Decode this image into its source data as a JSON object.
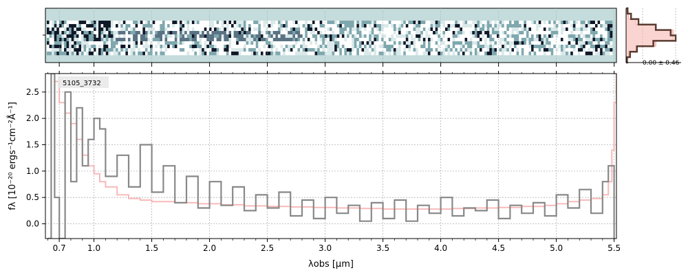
{
  "chart_data": [
    {
      "type": "heatmap",
      "panel": "2d-spectrum",
      "colors": {
        "background": "#c5dcdc",
        "dark": "#101828",
        "mid": "#7fa8ae"
      }
    },
    {
      "type": "line",
      "panel": "pixel-histogram",
      "annotation": "0.00 ± 0.46",
      "xlim": [
        -1.5,
        1.5
      ],
      "series": [
        {
          "color": "#5a3a30",
          "bins": [
            -1.5,
            -1.2,
            -0.9,
            -0.6,
            -0.3,
            0,
            0.3,
            0.6,
            0.9,
            1.2,
            1.5
          ],
          "counts": [
            0.02,
            0.08,
            0.22,
            0.55,
            1.0,
            0.9,
            0.6,
            0.25,
            0.1,
            0.03
          ]
        },
        {
          "color": "#f7b8b0",
          "bins": [
            -1.5,
            -1.2,
            -0.9,
            -0.6,
            -0.3,
            0,
            0.3,
            0.6,
            0.9,
            1.2,
            1.5
          ],
          "counts": [
            0.01,
            0.05,
            0.2,
            0.6,
            0.95,
            0.95,
            0.6,
            0.2,
            0.05,
            0.01
          ]
        }
      ]
    },
    {
      "type": "line",
      "panel": "1d-spectrum",
      "label": "5105_3732",
      "xlabel": "λobs [μm]",
      "ylabel": "fλ [10⁻²⁰ ergs⁻¹cm⁻²Å⁻¹]",
      "xlim": [
        0.58,
        5.52
      ],
      "ylim": [
        -0.28,
        2.85
      ],
      "xticks": [
        "0.7",
        "1.0",
        "1.5",
        "2.0",
        "2.5",
        "3.0",
        "3.5",
        "4.0",
        "4.5",
        "5.0",
        "5.5"
      ],
      "yticks": [
        "0.0",
        "0.5",
        "1.0",
        "1.5",
        "2.0",
        "2.5"
      ],
      "grid": true,
      "series": [
        {
          "name": "",
          "color": "#888888",
          "x": [
            0.6,
            0.63,
            0.66,
            0.7,
            0.75,
            0.8,
            0.85,
            0.9,
            0.95,
            1.0,
            1.05,
            1.1,
            1.2,
            1.3,
            1.4,
            1.5,
            1.6,
            1.7,
            1.8,
            1.9,
            2.0,
            2.1,
            2.2,
            2.3,
            2.4,
            2.5,
            2.6,
            2.7,
            2.8,
            2.9,
            3.0,
            3.1,
            3.2,
            3.3,
            3.4,
            3.5,
            3.6,
            3.7,
            3.8,
            3.9,
            4.0,
            4.1,
            4.2,
            4.3,
            4.4,
            4.5,
            4.6,
            4.7,
            4.8,
            4.9,
            5.0,
            5.1,
            5.2,
            5.3,
            5.4,
            5.45,
            5.5
          ],
          "y": [
            -0.28,
            2.85,
            0.5,
            -0.28,
            2.5,
            0.8,
            2.2,
            1.1,
            1.6,
            2.0,
            1.8,
            0.9,
            1.3,
            0.7,
            1.5,
            0.6,
            1.1,
            0.4,
            0.9,
            0.3,
            0.8,
            0.35,
            0.7,
            0.25,
            0.55,
            0.3,
            0.6,
            0.15,
            0.45,
            0.1,
            0.5,
            0.2,
            0.35,
            0.05,
            0.4,
            0.1,
            0.45,
            0.05,
            0.35,
            0.2,
            0.5,
            0.15,
            0.3,
            0.25,
            0.45,
            0.1,
            0.35,
            0.2,
            0.4,
            0.15,
            0.55,
            0.3,
            0.65,
            0.2,
            0.8,
            1.1,
            -0.28
          ]
        },
        {
          "name": "",
          "color": "#f7a8a8",
          "x": [
            0.6,
            0.63,
            0.66,
            0.7,
            0.75,
            0.8,
            0.85,
            0.9,
            0.95,
            1.0,
            1.05,
            1.1,
            1.2,
            1.3,
            1.4,
            1.5,
            1.7,
            1.9,
            2.1,
            2.3,
            2.5,
            2.7,
            2.9,
            3.1,
            3.3,
            3.5,
            3.7,
            3.9,
            4.1,
            4.3,
            4.5,
            4.7,
            4.9,
            5.0,
            5.1,
            5.2,
            5.3,
            5.4,
            5.45,
            5.48,
            5.5,
            5.52
          ],
          "y": [
            2.85,
            2.85,
            2.7,
            2.3,
            2.1,
            1.9,
            1.6,
            1.3,
            1.1,
            0.95,
            0.8,
            0.7,
            0.55,
            0.48,
            0.45,
            0.42,
            0.4,
            0.38,
            0.36,
            0.34,
            0.33,
            0.32,
            0.31,
            0.3,
            0.29,
            0.28,
            0.28,
            0.28,
            0.29,
            0.3,
            0.31,
            0.33,
            0.35,
            0.38,
            0.42,
            0.45,
            0.48,
            0.55,
            0.8,
            1.4,
            2.3,
            2.85
          ]
        }
      ]
    }
  ]
}
